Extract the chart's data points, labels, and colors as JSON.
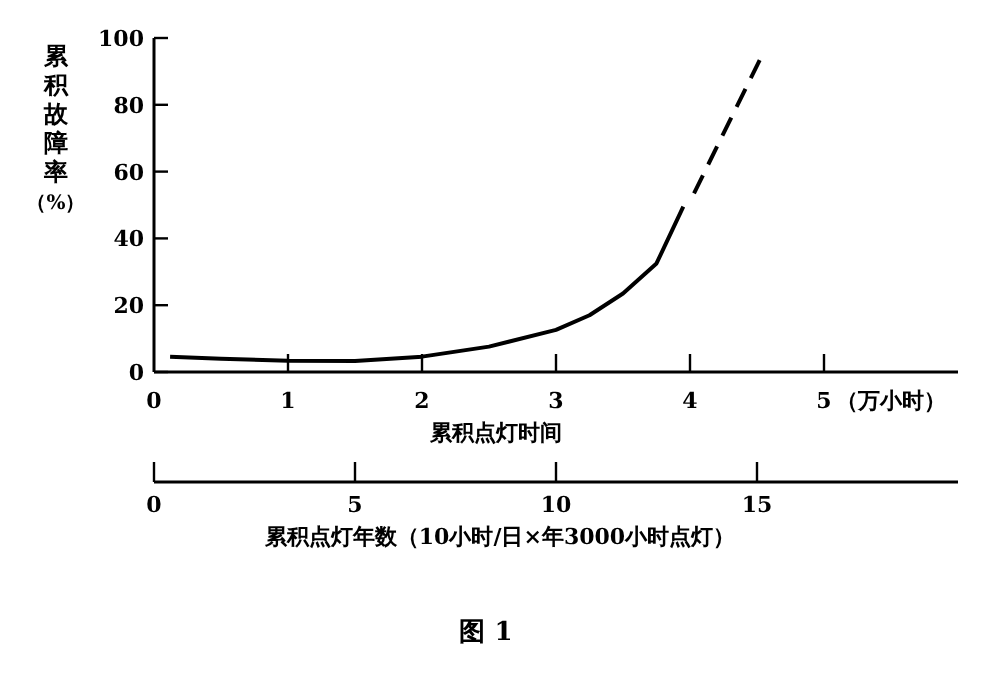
{
  "chart_data": {
    "type": "line",
    "title": "图 1",
    "xlabel": "累积点灯时间",
    "x2label": "累积点灯年数（10小时/日×年3000小时点灯）",
    "ylabel": "累积故障率（%）",
    "xlim": [
      0,
      6
    ],
    "xticks": [
      0,
      1,
      2,
      3,
      4,
      5
    ],
    "annotations": [
      "（万小时）"
    ],
    "x2lim": [
      0,
      20
    ],
    "x2ticks": [
      0,
      5,
      10,
      15
    ],
    "ylim": [
      0,
      100
    ],
    "yticks": [
      0,
      20,
      40,
      60,
      80,
      100
    ],
    "grid": false,
    "series": [
      {
        "color": "#000000",
        "line_style": "solid",
        "x": [
          0.12,
          0.5,
          1,
          1.5,
          2,
          2.5,
          3,
          3.25,
          3.5,
          3.75,
          3.95
        ],
        "values": [
          4.6,
          4,
          3.4,
          3.3,
          4.6,
          7.6,
          12.6,
          17,
          23.5,
          32.5,
          49.5
        ]
      },
      {
        "color": "#000000",
        "line_style": "dashed",
        "x": [
          4.03,
          4.52
        ],
        "values": [
          53.5,
          93.4
        ]
      }
    ]
  }
}
